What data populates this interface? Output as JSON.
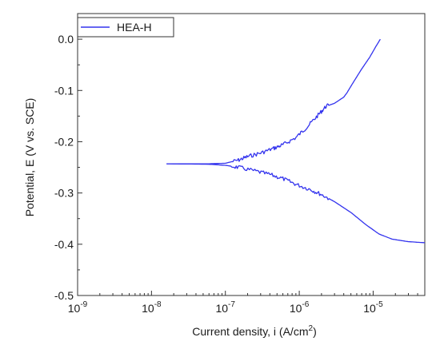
{
  "chart_data": {
    "type": "line",
    "title": "",
    "xlabel": "Current density, i (A/cm²)",
    "xlabel_parts": {
      "main": "Current density, i (A/cm",
      "sup": "2",
      "tail": ")"
    },
    "ylabel": "Potential, E (V vs. SCE)",
    "xscale": "log",
    "xlim": [
      1e-09,
      5e-05
    ],
    "ylim": [
      -0.5,
      0.05
    ],
    "grid": false,
    "legend_position": "top-left",
    "x_ticks": [
      {
        "value": 1e-09,
        "base": "10",
        "exp": "-9"
      },
      {
        "value": 1e-08,
        "base": "10",
        "exp": "-8"
      },
      {
        "value": 1e-07,
        "base": "10",
        "exp": "-7"
      },
      {
        "value": 1e-06,
        "base": "10",
        "exp": "-6"
      },
      {
        "value": 1e-05,
        "base": "10",
        "exp": "-5"
      }
    ],
    "y_ticks": [
      {
        "value": 0.0,
        "label": "0.0"
      },
      {
        "value": -0.1,
        "label": "-0.1"
      },
      {
        "value": -0.2,
        "label": "-0.2"
      },
      {
        "value": -0.3,
        "label": "-0.3"
      },
      {
        "value": -0.4,
        "label": "-0.4"
      },
      {
        "value": -0.5,
        "label": "-0.5"
      }
    ],
    "series": [
      {
        "name": "HEA-H",
        "color": "#3333ee",
        "points": [
          [
            1.6e-08,
            -0.243
          ],
          [
            3e-08,
            -0.243
          ],
          [
            6e-08,
            -0.243
          ],
          [
            1e-07,
            -0.242
          ],
          [
            1.5e-07,
            -0.236
          ],
          [
            2e-07,
            -0.229
          ],
          [
            3e-07,
            -0.222
          ],
          [
            4.5e-07,
            -0.213
          ],
          [
            6e-07,
            -0.206
          ],
          [
            9e-07,
            -0.192
          ],
          [
            1.3e-06,
            -0.17
          ],
          [
            1.8e-06,
            -0.148
          ],
          [
            2.3e-06,
            -0.131
          ],
          [
            3e-06,
            -0.125
          ],
          [
            4e-06,
            -0.113
          ],
          [
            4.4e-06,
            -0.105
          ],
          [
            5.5e-06,
            -0.082
          ],
          [
            7e-06,
            -0.058
          ],
          [
            9e-06,
            -0.035
          ],
          [
            1.08e-05,
            -0.015
          ],
          [
            1.25e-05,
            0.0
          ]
        ]
      },
      {
        "name": "",
        "color": "#3333ee",
        "points": [
          [
            1.6e-08,
            -0.243
          ],
          [
            6e-08,
            -0.244
          ],
          [
            1e-07,
            -0.246
          ],
          [
            1.5e-07,
            -0.25
          ],
          [
            2.5e-07,
            -0.257
          ],
          [
            4e-07,
            -0.264
          ],
          [
            6e-07,
            -0.272
          ],
          [
            9e-07,
            -0.283
          ],
          [
            1.4e-06,
            -0.293
          ],
          [
            2e-06,
            -0.303
          ],
          [
            3e-06,
            -0.317
          ],
          [
            5e-06,
            -0.338
          ],
          [
            8e-06,
            -0.362
          ],
          [
            1.2e-05,
            -0.38
          ],
          [
            1.8e-05,
            -0.39
          ],
          [
            3e-05,
            -0.395
          ],
          [
            5e-05,
            -0.397
          ]
        ]
      }
    ]
  }
}
